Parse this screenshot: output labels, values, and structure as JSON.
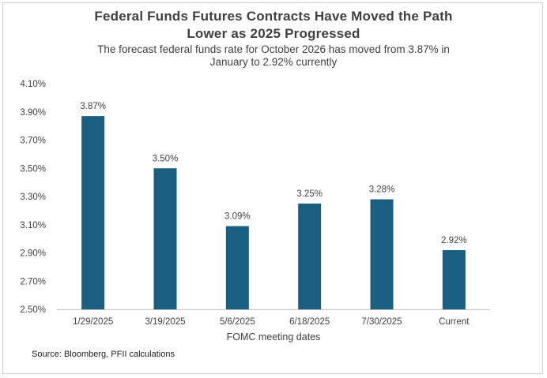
{
  "chart_data": {
    "type": "bar",
    "title_lines": [
      "Federal Funds Futures Contracts Have Moved the Path",
      "Lower as 2025 Progressed"
    ],
    "subtitle_lines": [
      "The forecast  federal funds rate for October 2026 has moved from 3.87% in",
      "January to 2.92% currently"
    ],
    "categories": [
      "1/29/2025",
      "3/19/2025",
      "5/6/2025",
      "6/18/2025",
      "7/30/2025",
      "Current"
    ],
    "values": [
      3.87,
      3.5,
      3.09,
      3.25,
      3.28,
      2.92
    ],
    "data_labels": [
      "3.87%",
      "3.50%",
      "3.09%",
      "3.25%",
      "3.28%",
      "2.92%"
    ],
    "xlabel": "FOMC meeting dates",
    "ylabel": "",
    "ylim": [
      2.5,
      4.1
    ],
    "y_ticks": [
      2.5,
      2.7,
      2.9,
      3.1,
      3.3,
      3.5,
      3.7,
      3.9,
      4.1
    ],
    "y_tick_labels": [
      "2.50%",
      "2.70%",
      "2.90%",
      "3.10%",
      "3.30%",
      "3.50%",
      "3.70%",
      "3.90%",
      "4.10%"
    ],
    "grid": false,
    "legend": "none",
    "bar_color": "#1a5e82",
    "source": "Source: Bloomberg, PFII calculations"
  }
}
